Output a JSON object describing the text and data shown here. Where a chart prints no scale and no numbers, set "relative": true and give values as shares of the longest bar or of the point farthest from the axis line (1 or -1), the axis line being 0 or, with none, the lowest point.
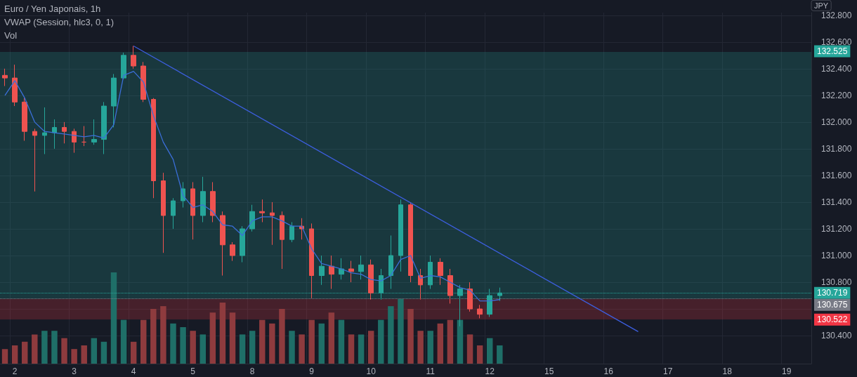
{
  "chart_data": [
    {
      "type": "candlestick",
      "title": "Euro / Yen Japonais, 1h",
      "ylabel": "JPY",
      "annotations": [
        "VWAP (Session, hlc3, 0, 1)"
      ],
      "categories": [
        null,
        "2",
        null,
        null,
        null,
        null,
        null,
        "3",
        null,
        null,
        null,
        null,
        null,
        "4",
        null,
        null,
        null,
        null,
        null,
        "5",
        null,
        null,
        null,
        null,
        null,
        "8",
        null,
        null,
        null,
        null,
        null,
        "9",
        null,
        null,
        null,
        null,
        null,
        "10",
        null,
        null,
        null,
        null,
        null,
        "11",
        null,
        null,
        null,
        null,
        null,
        "12",
        null,
        null,
        null,
        null,
        null,
        "15",
        null,
        null,
        null,
        null,
        null,
        "16",
        null,
        null,
        null,
        null,
        null,
        "17",
        null,
        null,
        null,
        null,
        null,
        "18",
        null,
        null,
        null,
        null,
        null,
        "19",
        null,
        null
      ],
      "ohlc": [
        [
          132.35,
          132.4,
          132.27,
          132.33
        ],
        [
          132.33,
          132.43,
          132.12,
          132.15
        ],
        [
          132.15,
          132.18,
          131.86,
          131.93
        ],
        [
          131.93,
          131.95,
          131.48,
          131.9
        ],
        [
          131.9,
          132.11,
          131.76,
          131.92
        ],
        [
          131.92,
          132.02,
          131.8,
          131.96
        ],
        [
          131.96,
          132.0,
          131.84,
          131.93
        ],
        [
          131.93,
          131.95,
          131.77,
          131.85
        ],
        [
          131.85,
          131.97,
          131.82,
          131.85
        ],
        [
          131.85,
          132.02,
          131.83,
          131.87
        ],
        [
          131.87,
          132.15,
          131.76,
          132.12
        ],
        [
          132.12,
          132.36,
          131.96,
          132.33
        ],
        [
          132.33,
          132.52,
          132.32,
          132.5
        ],
        [
          132.5,
          132.57,
          132.4,
          132.42
        ],
        [
          132.42,
          132.45,
          132.15,
          132.17
        ],
        [
          132.17,
          132.18,
          131.43,
          131.56
        ],
        [
          131.56,
          131.62,
          131.02,
          131.3
        ],
        [
          131.3,
          131.43,
          131.2,
          131.41
        ],
        [
          131.41,
          131.55,
          131.36,
          131.5
        ],
        [
          131.5,
          131.55,
          131.12,
          131.3
        ],
        [
          131.3,
          131.59,
          131.25,
          131.48
        ],
        [
          131.48,
          131.55,
          131.25,
          131.3
        ],
        [
          131.3,
          131.33,
          130.85,
          131.08
        ],
        [
          131.08,
          131.1,
          130.96,
          131.0
        ],
        [
          131.0,
          131.22,
          130.95,
          131.2
        ],
        [
          131.2,
          131.38,
          131.18,
          131.33
        ],
        [
          131.33,
          131.42,
          131.25,
          131.32
        ],
        [
          131.32,
          131.4,
          131.08,
          131.3
        ],
        [
          131.3,
          131.33,
          130.9,
          131.12
        ],
        [
          131.12,
          131.25,
          131.1,
          131.22
        ],
        [
          131.22,
          131.28,
          131.12,
          131.2
        ],
        [
          131.2,
          131.24,
          130.68,
          130.85
        ],
        [
          130.85,
          131.0,
          130.78,
          130.92
        ],
        [
          130.92,
          131.0,
          130.75,
          130.86
        ],
        [
          130.86,
          130.98,
          130.82,
          130.9
        ],
        [
          130.9,
          130.96,
          130.8,
          130.88
        ],
        [
          130.88,
          131.0,
          130.82,
          130.93
        ],
        [
          130.93,
          130.97,
          130.67,
          130.72
        ],
        [
          130.72,
          130.9,
          130.67,
          130.85
        ],
        [
          130.85,
          131.15,
          130.75,
          131.0
        ],
        [
          131.0,
          131.42,
          130.88,
          131.38
        ],
        [
          131.38,
          131.4,
          130.8,
          130.85
        ],
        [
          130.85,
          130.9,
          130.67,
          130.78
        ],
        [
          130.78,
          131.0,
          130.75,
          130.95
        ],
        [
          130.95,
          130.98,
          130.78,
          130.85
        ],
        [
          130.85,
          130.9,
          130.64,
          130.7
        ],
        [
          130.7,
          130.78,
          130.47,
          130.75
        ],
        [
          130.75,
          130.8,
          130.58,
          130.6
        ],
        [
          130.6,
          130.63,
          130.53,
          130.56
        ],
        [
          130.56,
          130.75,
          130.54,
          130.7
        ],
        [
          130.7,
          130.76,
          130.66,
          130.72
        ],
        null,
        null,
        null,
        null,
        null,
        null,
        null,
        null,
        null,
        null,
        null,
        null,
        null,
        null,
        null,
        null,
        null,
        null,
        null,
        null,
        null,
        null,
        null,
        null,
        null,
        null,
        null,
        null,
        null,
        null,
        null
      ],
      "colors": [
        "#ef5350",
        "#ef5350",
        "#ef5350",
        "#ef5350",
        "#26a69a",
        "#26a69a",
        "#ef5350",
        "#ef5350",
        "#ef5350",
        "#26a69a",
        "#26a69a",
        "#26a69a",
        "#26a69a",
        "#ef5350",
        "#ef5350",
        "#ef5350",
        "#ef5350",
        "#26a69a",
        "#26a69a",
        "#ef5350",
        "#26a69a",
        "#ef5350",
        "#ef5350",
        "#ef5350",
        "#26a69a",
        "#26a69a",
        "#ef5350",
        "#ef5350",
        "#ef5350",
        "#26a69a",
        "#ef5350",
        "#ef5350",
        "#26a69a",
        "#ef5350",
        "#26a69a",
        "#ef5350",
        "#26a69a",
        "#ef5350",
        "#26a69a",
        "#26a69a",
        "#26a69a",
        "#ef5350",
        "#ef5350",
        "#26a69a",
        "#ef5350",
        "#ef5350",
        "#26a69a",
        "#ef5350",
        "#ef5350",
        "#26a69a",
        "#26a69a",
        null,
        null,
        null,
        null,
        null,
        null,
        null,
        null,
        null,
        null,
        null,
        null,
        null,
        null,
        null,
        null,
        null,
        null,
        null,
        null,
        null,
        null,
        null,
        null,
        null,
        null,
        null,
        null,
        null,
        null,
        null
      ],
      "series": [
        {
          "type": "line",
          "color": "#3b6fd9",
          "values": [
            132.2,
            132.31,
            132.18,
            132.0,
            131.93,
            131.92,
            131.91,
            131.9,
            131.89,
            131.9,
            131.88,
            131.98,
            132.35,
            132.38,
            132.3,
            132.05,
            131.85,
            131.72,
            131.45,
            131.36,
            131.38,
            131.33,
            131.23,
            131.22,
            131.15,
            131.26,
            131.29,
            131.29,
            131.26,
            131.22,
            131.22,
            131.05,
            130.94,
            130.92,
            130.9,
            130.87,
            130.86,
            130.82,
            130.81,
            130.85,
            130.97,
            131.0,
            130.83,
            130.85,
            130.84,
            130.8,
            130.76,
            130.74,
            130.66,
            130.66,
            130.67,
            null,
            null,
            null,
            null,
            null,
            null,
            null,
            null,
            null,
            null,
            null,
            null,
            null,
            null,
            null,
            null,
            null,
            null,
            null,
            null,
            null,
            null,
            null,
            null,
            null,
            null,
            null,
            null,
            null,
            null,
            null
          ]
        },
        {
          "type": "line",
          "color": "#3d5fe0",
          "values": [
            null,
            null,
            null,
            null,
            null,
            null,
            null,
            null,
            null,
            null,
            null,
            null,
            null,
            132.57,
            null,
            null,
            null,
            null,
            null,
            null,
            null,
            null,
            null,
            null,
            null,
            null,
            null,
            null,
            null,
            null,
            null,
            null,
            null,
            null,
            null,
            null,
            null,
            null,
            null,
            null,
            null,
            null,
            null,
            null,
            null,
            null,
            null,
            null,
            null,
            null,
            null,
            null,
            null,
            null,
            null,
            null,
            null,
            null,
            null,
            null,
            null,
            null,
            null,
            null,
            130.43,
            null,
            null,
            null,
            null,
            null,
            null,
            null,
            null,
            null,
            null,
            null,
            null,
            null,
            null,
            null,
            null,
            null
          ]
        }
      ],
      "ylim": [
        130.19,
        132.82
      ],
      "yticks": [
        {
          "value": 130.4,
          "label": "130.400"
        },
        {
          "value": 130.6,
          "label": null
        },
        {
          "value": 130.8,
          "label": "130.800"
        },
        {
          "value": 131.0,
          "label": "131.000"
        },
        {
          "value": 131.2,
          "label": "131.200"
        },
        {
          "value": 131.4,
          "label": "131.400"
        },
        {
          "value": 131.6,
          "label": "131.600"
        },
        {
          "value": 131.8,
          "label": "131.800"
        },
        {
          "value": 132.0,
          "label": "132.000"
        },
        {
          "value": 132.2,
          "label": "132.200"
        },
        {
          "value": 132.4,
          "label": "132.400"
        },
        {
          "value": 132.6,
          "label": "132.600"
        },
        {
          "value": 132.8,
          "label": "132.800"
        }
      ],
      "grid": true,
      "marker": "none",
      "bands": [
        {
          "axis": "y",
          "from": 130.675,
          "to": 132.525,
          "label": "132.525",
          "color": "#26a69a"
        },
        {
          "axis": "y",
          "from": 130.675,
          "to": 130.522,
          "label": "130.522",
          "color": "#f23645"
        }
      ],
      "ref_lines": [
        {
          "axis": "y",
          "value": 130.719,
          "label": "130.719",
          "color": "#26a69a",
          "line_style": "dotted"
        },
        {
          "axis": "y",
          "value": 130.675,
          "label": "130.675",
          "color": "#787b86",
          "line_style": "dotted"
        }
      ]
    },
    {
      "type": "bar",
      "title": "Vol",
      "relative": true,
      "tick_labels": false,
      "categories": [
        null,
        "2",
        null,
        null,
        null,
        null,
        null,
        "3",
        null,
        null,
        null,
        null,
        null,
        "4",
        null,
        null,
        null,
        null,
        null,
        "5",
        null,
        null,
        null,
        null,
        null,
        "8",
        null,
        null,
        null,
        null,
        null,
        "9",
        null,
        null,
        null,
        null,
        null,
        "10",
        null,
        null,
        null,
        null,
        null,
        "11",
        null,
        null,
        null,
        null,
        null,
        "12",
        null,
        null,
        null,
        null,
        null,
        "15",
        null,
        null,
        null,
        null,
        null,
        "16",
        null,
        null,
        null,
        null,
        null,
        "17",
        null,
        null,
        null,
        null,
        null,
        "18",
        null,
        null,
        null,
        null,
        null,
        "19",
        null,
        null
      ],
      "values": [
        0.16,
        0.2,
        0.24,
        0.32,
        0.36,
        0.36,
        0.28,
        0.16,
        0.2,
        0.28,
        0.24,
        1,
        0.48,
        0.24,
        0.48,
        0.6,
        0.63,
        0.44,
        0.4,
        0.36,
        0.32,
        0.56,
        0.67,
        0.56,
        0.32,
        0.36,
        0.48,
        0.44,
        0.6,
        0.36,
        0.32,
        0.48,
        0.44,
        0.56,
        0.48,
        0.32,
        0.32,
        0.36,
        0.48,
        0.63,
        0.71,
        0.6,
        0.36,
        0.36,
        0.44,
        0.48,
        0.48,
        0.32,
        0.2,
        0.28,
        0.2,
        null,
        null,
        null,
        null,
        null,
        null,
        null,
        null,
        null,
        null,
        null,
        null,
        null,
        null,
        null,
        null,
        null,
        null,
        null,
        null,
        null,
        null,
        null,
        null,
        null,
        null,
        null,
        null,
        null,
        null,
        null
      ],
      "colors": [
        "#8e3b3e",
        "#8e3b3e",
        "#8e3b3e",
        "#8e3b3e",
        "#1f6f68",
        "#1f6f68",
        "#8e3b3e",
        "#8e3b3e",
        "#8e3b3e",
        "#1f6f68",
        "#1f6f68",
        "#1f6f68",
        "#1f6f68",
        "#8e3b3e",
        "#8e3b3e",
        "#8e3b3e",
        "#8e3b3e",
        "#1f6f68",
        "#1f6f68",
        "#8e3b3e",
        "#1f6f68",
        "#8e3b3e",
        "#8e3b3e",
        "#8e3b3e",
        "#1f6f68",
        "#1f6f68",
        "#8e3b3e",
        "#8e3b3e",
        "#8e3b3e",
        "#1f6f68",
        "#8e3b3e",
        "#8e3b3e",
        "#1f6f68",
        "#8e3b3e",
        "#1f6f68",
        "#8e3b3e",
        "#1f6f68",
        "#8e3b3e",
        "#1f6f68",
        "#1f6f68",
        "#1f6f68",
        "#8e3b3e",
        "#8e3b3e",
        "#1f6f68",
        "#8e3b3e",
        "#8e3b3e",
        "#1f6f68",
        "#8e3b3e",
        "#8e3b3e",
        "#1f6f68",
        "#1f6f68",
        null,
        null,
        null,
        null,
        null,
        null,
        null,
        null,
        null,
        null,
        null,
        null,
        null,
        null,
        null,
        null,
        null,
        null,
        null,
        null,
        null,
        null,
        null,
        null,
        null,
        null,
        null,
        null,
        null,
        null,
        null
      ]
    }
  ]
}
